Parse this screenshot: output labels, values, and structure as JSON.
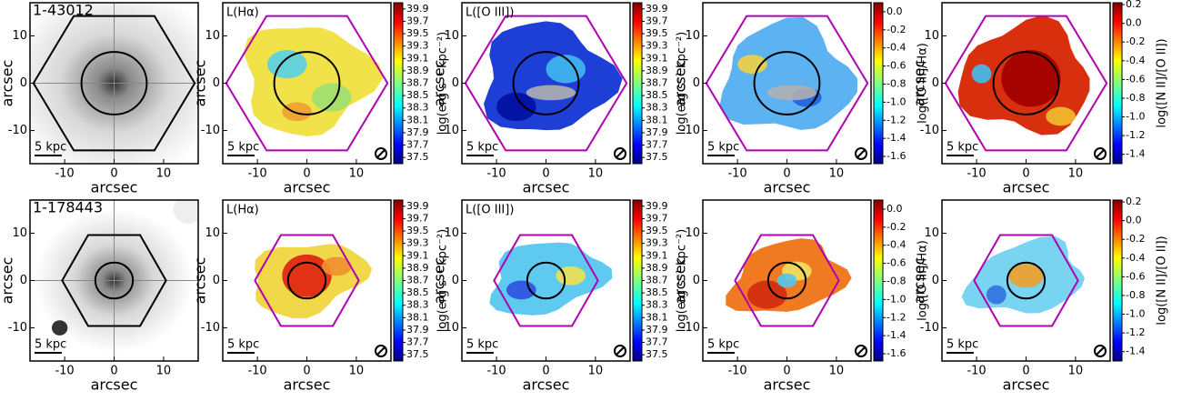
{
  "rows": [
    {
      "id": "1-43012"
    },
    {
      "id": "1-178443"
    }
  ],
  "panel_titles": [
    "L(Hα)",
    "L([O III])"
  ],
  "axes": {
    "xlabel": "arcsec",
    "ylabel": "arcsec",
    "xlim": [
      -17,
      17
    ],
    "ylim": [
      -17,
      17
    ],
    "xticks": [
      -10,
      0,
      10
    ],
    "yticks": [
      -10,
      0,
      10
    ],
    "scale_bar": "5 kpc"
  },
  "colorbars": [
    {
      "label": "log(erg s⁻¹ kpc⁻²)",
      "lim": [
        37.4,
        40.0
      ],
      "ticks": [
        39.9,
        39.7,
        39.5,
        39.3,
        39.1,
        38.9,
        38.7,
        38.5,
        38.3,
        38.1,
        37.9,
        37.7,
        37.5
      ]
    },
    {
      "label": "log([O III]/Hα)",
      "lim": [
        -1.68,
        0.1
      ],
      "ticks": [
        {
          "value": 0,
          "label": "0.0"
        },
        -0.2,
        -0.4,
        -0.6,
        -0.8,
        {
          "value": -1,
          "label": "-1.0"
        },
        -1.2,
        -1.4,
        -1.6
      ]
    },
    {
      "label": "log([N II]/[O II])",
      "lim": [
        -1.5,
        0.22
      ],
      "ticks": [
        0.2,
        {
          "value": 0,
          "label": "0.0"
        },
        -0.2,
        -0.4,
        -0.6,
        -0.8,
        {
          "value": -1,
          "label": "-1.0"
        },
        -1.2,
        -1.4
      ]
    }
  ]
}
